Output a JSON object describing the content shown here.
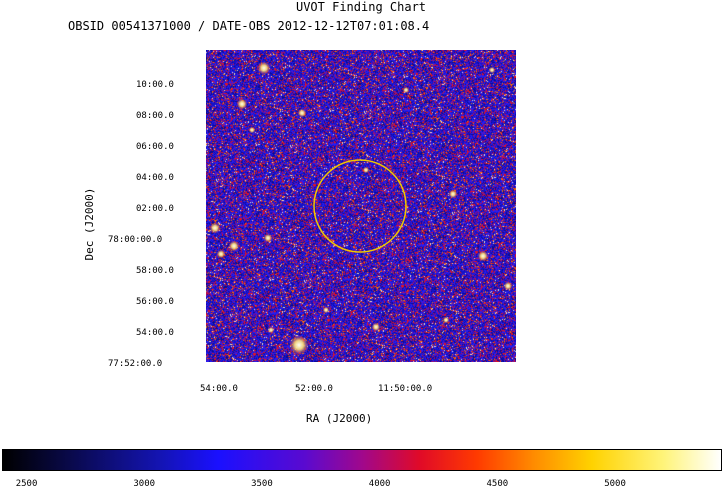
{
  "chart_data": {
    "type": "heatmap",
    "title": "UVOT Finding Chart",
    "subtitle": "OBSID 00541371000 / DATE-OBS 2012-12-12T07:01:08.4",
    "xlabel": "RA (J2000)",
    "ylabel": "Dec (J2000)",
    "x_ticks": [
      "54:00.0",
      "52:00.0",
      "11:50:00.0"
    ],
    "y_ticks": [
      "10:00.0",
      "08:00.0",
      "06:00.0",
      "04:00.0",
      "02:00.0",
      "78:00:00.0",
      "58:00.0",
      "56:00.0",
      "54:00.0",
      "77:52:00.0"
    ],
    "colorbar": {
      "ticks": [
        2500,
        3000,
        3500,
        4000,
        4500,
        5000
      ],
      "range": [
        2400,
        5450
      ]
    },
    "overlay": {
      "shape": "circle",
      "color": "#f0c800"
    },
    "colors": {
      "background_noise": "#1a10c8",
      "hot_pixel": "#e8141e",
      "star": "#ffffff",
      "circle": "#f0c800"
    }
  }
}
